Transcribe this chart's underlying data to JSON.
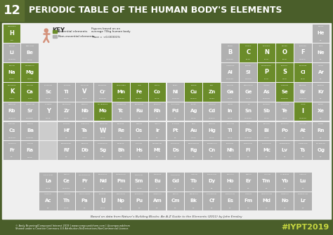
{
  "title_number": "12",
  "title_text": "PERIODIC TABLE OF THE HUMAN BODY'S ELEMENTS",
  "bg_outer": "#4a5e2a",
  "bg_inner": "#f0f0f0",
  "header_bg": "#4a5e2a",
  "number_bg": "#6b7d3a",
  "essential_color": "#6b8c2a",
  "non_essential_color": "#b0b0b0",
  "footer_bg": "#4a5e2a",
  "footer_text": "Based on data from Nature's Building Blocks: An A-Z Guide to the Elements (2011) by John Emsley",
  "hashtag": "#IYPT2019",
  "key_text": "KEY",
  "key_essential": "Essential elements",
  "key_non_essential": "Non-essential elements",
  "key_figures": "Figures based on an\naverage 70kg human body",
  "key_trace": "Trace = <0.00001%",
  "elements": [
    {
      "symbol": "H",
      "name": "HYDROGEN",
      "val": "10%",
      "row": 0,
      "col": 0,
      "type": "essential"
    },
    {
      "symbol": "He",
      "name": "HELIUM",
      "val": "0%",
      "row": 0,
      "col": 17,
      "type": "non_essential"
    },
    {
      "symbol": "Li",
      "name": "LITHIUM",
      "val": "0.00001%",
      "row": 1,
      "col": 0,
      "type": "non_essential"
    },
    {
      "symbol": "Be",
      "name": "BERYLLIUM",
      "val": "TRACE",
      "row": 1,
      "col": 1,
      "type": "non_essential"
    },
    {
      "symbol": "B",
      "name": "BORON",
      "val": "0.00003%",
      "row": 1,
      "col": 12,
      "type": "non_essential"
    },
    {
      "symbol": "C",
      "name": "CARBON",
      "val": "22.3%",
      "row": 1,
      "col": 13,
      "type": "essential"
    },
    {
      "symbol": "N",
      "name": "NITROGEN",
      "val": "2.17%",
      "row": 1,
      "col": 14,
      "type": "essential"
    },
    {
      "symbol": "O",
      "name": "OXYGEN",
      "val": "61.4%",
      "row": 1,
      "col": 15,
      "type": "essential"
    },
    {
      "symbol": "F",
      "name": "FLUORINE",
      "val": "0.0037%",
      "row": 1,
      "col": 16,
      "type": "non_essential"
    },
    {
      "symbol": "Ne",
      "name": "NEON",
      "val": "0%",
      "row": 1,
      "col": 17,
      "type": "non_essential"
    },
    {
      "symbol": "Na",
      "name": "SODIUM",
      "val": "0.053%",
      "row": 2,
      "col": 0,
      "type": "essential"
    },
    {
      "symbol": "Mg",
      "name": "MAGNESIUM",
      "val": "0.027%",
      "row": 2,
      "col": 1,
      "type": "essential"
    },
    {
      "symbol": "Al",
      "name": "ALUMINIUM",
      "val": "0.00009%",
      "row": 2,
      "col": 12,
      "type": "non_essential"
    },
    {
      "symbol": "Si",
      "name": "SILICON",
      "val": "0.0014%",
      "row": 2,
      "col": 13,
      "type": "non_essential"
    },
    {
      "symbol": "P",
      "name": "PHOSPHORUS",
      "val": "1.11%",
      "row": 2,
      "col": 14,
      "type": "essential"
    },
    {
      "symbol": "S",
      "name": "SULPHUR",
      "val": "0.20%",
      "row": 2,
      "col": 15,
      "type": "essential"
    },
    {
      "symbol": "Cl",
      "name": "CHLORINE",
      "val": "0.14%",
      "row": 2,
      "col": 16,
      "type": "essential"
    },
    {
      "symbol": "Ar",
      "name": "ARGON",
      "val": "0%",
      "row": 2,
      "col": 17,
      "type": "non_essential"
    },
    {
      "symbol": "K",
      "name": "POTASSIUM",
      "val": "0.047%",
      "row": 3,
      "col": 0,
      "type": "essential"
    },
    {
      "symbol": "Ca",
      "name": "CALCIUM",
      "val": "1.43%",
      "row": 3,
      "col": 1,
      "type": "essential"
    },
    {
      "symbol": "Sc",
      "name": "SCANDIUM",
      "val": "TRACE",
      "row": 3,
      "col": 2,
      "type": "non_essential"
    },
    {
      "symbol": "Ti",
      "name": "TITANIUM",
      "val": "TRACE",
      "row": 3,
      "col": 3,
      "type": "non_essential"
    },
    {
      "symbol": "V",
      "name": "VANADIUM",
      "val": "TRACE",
      "row": 3,
      "col": 4,
      "type": "non_essential"
    },
    {
      "symbol": "Cr",
      "name": "CHROMIUM",
      "val": "0.00003%",
      "row": 3,
      "col": 5,
      "type": "non_essential"
    },
    {
      "symbol": "Mn",
      "name": "MANGANESE",
      "val": "0.00002%",
      "row": 3,
      "col": 6,
      "type": "essential"
    },
    {
      "symbol": "Fe",
      "name": "IRON",
      "val": "0.0040%",
      "row": 3,
      "col": 7,
      "type": "essential"
    },
    {
      "symbol": "Co",
      "name": "COBALT",
      "val": "TRACE",
      "row": 3,
      "col": 8,
      "type": "essential"
    },
    {
      "symbol": "Ni",
      "name": "NICKEL",
      "val": "0.00002%",
      "row": 3,
      "col": 9,
      "type": "non_essential"
    },
    {
      "symbol": "Cu",
      "name": "COPPER",
      "val": "0.0001%",
      "row": 3,
      "col": 10,
      "type": "essential"
    },
    {
      "symbol": "Zn",
      "name": "ZINC",
      "val": "0.003%",
      "row": 3,
      "col": 11,
      "type": "essential"
    },
    {
      "symbol": "Ga",
      "name": "GALLIUM",
      "val": "TRACE",
      "row": 3,
      "col": 12,
      "type": "non_essential"
    },
    {
      "symbol": "Ge",
      "name": "GERMANIUM",
      "val": "TRACE",
      "row": 3,
      "col": 13,
      "type": "non_essential"
    },
    {
      "symbol": "As",
      "name": "ARSENIC",
      "val": "0.00001%",
      "row": 3,
      "col": 14,
      "type": "non_essential"
    },
    {
      "symbol": "Se",
      "name": "SELENIUM",
      "val": "0.00005%",
      "row": 3,
      "col": 15,
      "type": "essential"
    },
    {
      "symbol": "Br",
      "name": "BROMINE",
      "val": "0.00017%",
      "row": 3,
      "col": 16,
      "type": "non_essential"
    },
    {
      "symbol": "Kr",
      "name": "KRYPTON",
      "val": "0%",
      "row": 3,
      "col": 17,
      "type": "non_essential"
    },
    {
      "symbol": "Rb",
      "name": "RUBIDIUM",
      "val": "0.00017%",
      "row": 4,
      "col": 0,
      "type": "non_essential"
    },
    {
      "symbol": "Sr",
      "name": "STRONTIUM",
      "val": "0.00046%",
      "row": 4,
      "col": 1,
      "type": "non_essential"
    },
    {
      "symbol": "Y",
      "name": "YTTRIUM",
      "val": "TRACE",
      "row": 4,
      "col": 2,
      "type": "non_essential"
    },
    {
      "symbol": "Zr",
      "name": "ZIRCONIUM",
      "val": "TRACE",
      "row": 4,
      "col": 3,
      "type": "non_essential"
    },
    {
      "symbol": "Nb",
      "name": "NIOBIUM",
      "val": "TRACE",
      "row": 4,
      "col": 4,
      "type": "non_essential"
    },
    {
      "symbol": "Mo",
      "name": "MOLYBDENUM",
      "val": "TRACE",
      "row": 4,
      "col": 5,
      "type": "essential"
    },
    {
      "symbol": "Tc",
      "name": "TECHNETIUM",
      "val": "0%",
      "row": 4,
      "col": 6,
      "type": "non_essential"
    },
    {
      "symbol": "Ru",
      "name": "RUTHENIUM",
      "val": "0%",
      "row": 4,
      "col": 7,
      "type": "non_essential"
    },
    {
      "symbol": "Rh",
      "name": "RHODIUM",
      "val": "0%",
      "row": 4,
      "col": 8,
      "type": "non_essential"
    },
    {
      "symbol": "Pd",
      "name": "PALLADIUM",
      "val": "0%",
      "row": 4,
      "col": 9,
      "type": "non_essential"
    },
    {
      "symbol": "Ag",
      "name": "SILVER",
      "val": "TRACE",
      "row": 4,
      "col": 10,
      "type": "non_essential"
    },
    {
      "symbol": "Cd",
      "name": "CADMIUM",
      "val": "0.0001%",
      "row": 4,
      "col": 11,
      "type": "non_essential"
    },
    {
      "symbol": "In",
      "name": "INDIUM",
      "val": "TRACE",
      "row": 4,
      "col": 12,
      "type": "non_essential"
    },
    {
      "symbol": "Sn",
      "name": "TIN",
      "val": "0.00003%",
      "row": 4,
      "col": 13,
      "type": "non_essential"
    },
    {
      "symbol": "Sb",
      "name": "ANTIMONY",
      "val": "TRACE",
      "row": 4,
      "col": 14,
      "type": "non_essential"
    },
    {
      "symbol": "Te",
      "name": "TELLURIUM",
      "val": "TRACE",
      "row": 4,
      "col": 15,
      "type": "non_essential"
    },
    {
      "symbol": "I",
      "name": "IODINE",
      "val": "0.00007%",
      "row": 4,
      "col": 16,
      "type": "essential"
    },
    {
      "symbol": "Xe",
      "name": "XENON",
      "val": "0%",
      "row": 4,
      "col": 17,
      "type": "non_essential"
    },
    {
      "symbol": "Cs",
      "name": "CAESIUM",
      "val": "0.00001%",
      "row": 5,
      "col": 0,
      "type": "non_essential"
    },
    {
      "symbol": "Ba",
      "name": "BARIUM",
      "val": "0.00003%",
      "row": 5,
      "col": 1,
      "type": "non_essential"
    },
    {
      "symbol": "Hf",
      "name": "HAFNIUM",
      "val": "0%",
      "row": 5,
      "col": 3,
      "type": "non_essential"
    },
    {
      "symbol": "Ta",
      "name": "TANTALUM",
      "val": "TRACE",
      "row": 5,
      "col": 4,
      "type": "non_essential"
    },
    {
      "symbol": "W",
      "name": "TUNGSTEN",
      "val": "TRACE",
      "row": 5,
      "col": 5,
      "type": "non_essential"
    },
    {
      "symbol": "Re",
      "name": "RHENIUM",
      "val": "0%",
      "row": 5,
      "col": 6,
      "type": "non_essential"
    },
    {
      "symbol": "Os",
      "name": "OSMIUM",
      "val": "0%",
      "row": 5,
      "col": 7,
      "type": "non_essential"
    },
    {
      "symbol": "Ir",
      "name": "IRIDIUM",
      "val": "0%",
      "row": 5,
      "col": 8,
      "type": "non_essential"
    },
    {
      "symbol": "Pt",
      "name": "PLATINUM",
      "val": "0%",
      "row": 5,
      "col": 9,
      "type": "non_essential"
    },
    {
      "symbol": "Au",
      "name": "GOLD",
      "val": "TRACE",
      "row": 5,
      "col": 10,
      "type": "non_essential"
    },
    {
      "symbol": "Hg",
      "name": "MERCURY",
      "val": "TRACE",
      "row": 5,
      "col": 11,
      "type": "non_essential"
    },
    {
      "symbol": "Tl",
      "name": "THALLIUM",
      "val": "TRACE",
      "row": 5,
      "col": 12,
      "type": "non_essential"
    },
    {
      "symbol": "Pb",
      "name": "LEAD",
      "val": "0.00017%",
      "row": 5,
      "col": 13,
      "type": "non_essential"
    },
    {
      "symbol": "Bi",
      "name": "BISMUTH",
      "val": "TRACE",
      "row": 5,
      "col": 14,
      "type": "non_essential"
    },
    {
      "symbol": "Po",
      "name": "POLONIUM",
      "val": "0%",
      "row": 5,
      "col": 15,
      "type": "non_essential"
    },
    {
      "symbol": "At",
      "name": "ASTATINE",
      "val": "0%",
      "row": 5,
      "col": 16,
      "type": "non_essential"
    },
    {
      "symbol": "Rn",
      "name": "RADON",
      "val": "0%",
      "row": 5,
      "col": 17,
      "type": "non_essential"
    },
    {
      "symbol": "Fr",
      "name": "FRANCIUM",
      "val": "0%",
      "row": 6,
      "col": 0,
      "type": "non_essential"
    },
    {
      "symbol": "Ra",
      "name": "RADIUM",
      "val": "TRACE",
      "row": 6,
      "col": 1,
      "type": "non_essential"
    },
    {
      "symbol": "Rf",
      "name": "RUTHERFORD.",
      "val": "0%",
      "row": 6,
      "col": 3,
      "type": "non_essential"
    },
    {
      "symbol": "Db",
      "name": "DUBNIUM",
      "val": "0%",
      "row": 6,
      "col": 4,
      "type": "non_essential"
    },
    {
      "symbol": "Sg",
      "name": "SEABORGIUM",
      "val": "0%",
      "row": 6,
      "col": 5,
      "type": "non_essential"
    },
    {
      "symbol": "Bh",
      "name": "BOHRIUM",
      "val": "0%",
      "row": 6,
      "col": 6,
      "type": "non_essential"
    },
    {
      "symbol": "Hs",
      "name": "HASSIUM",
      "val": "0%",
      "row": 6,
      "col": 7,
      "type": "non_essential"
    },
    {
      "symbol": "Mt",
      "name": "MEITNERIUM",
      "val": "0%",
      "row": 6,
      "col": 8,
      "type": "non_essential"
    },
    {
      "symbol": "Ds",
      "name": "DARMSTADT.",
      "val": "0%",
      "row": 6,
      "col": 9,
      "type": "non_essential"
    },
    {
      "symbol": "Rg",
      "name": "ROENTGENIUM",
      "val": "0%",
      "row": 6,
      "col": 10,
      "type": "non_essential"
    },
    {
      "symbol": "Cn",
      "name": "COPERNICUM",
      "val": "0%",
      "row": 6,
      "col": 11,
      "type": "non_essential"
    },
    {
      "symbol": "Nh",
      "name": "NIHONIUM",
      "val": "0%",
      "row": 6,
      "col": 12,
      "type": "non_essential"
    },
    {
      "symbol": "Fl",
      "name": "FLEROVIUM",
      "val": "0%",
      "row": 6,
      "col": 13,
      "type": "non_essential"
    },
    {
      "symbol": "Mc",
      "name": "MOSCOVIUM",
      "val": "0%",
      "row": 6,
      "col": 14,
      "type": "non_essential"
    },
    {
      "symbol": "Lv",
      "name": "LIVERMORIUM",
      "val": "0%",
      "row": 6,
      "col": 15,
      "type": "non_essential"
    },
    {
      "symbol": "Ts",
      "name": "TENNESSINE",
      "val": "0%",
      "row": 6,
      "col": 16,
      "type": "non_essential"
    },
    {
      "symbol": "Og",
      "name": "OGANESSON",
      "val": "0%",
      "row": 6,
      "col": 17,
      "type": "non_essential"
    },
    {
      "symbol": "La",
      "name": "LANTHANUM",
      "val": "TRACE",
      "row": 8,
      "col": 2,
      "type": "non_essential"
    },
    {
      "symbol": "Ce",
      "name": "CERIUM",
      "val": "0.00006%",
      "row": 8,
      "col": 3,
      "type": "non_essential"
    },
    {
      "symbol": "Pr",
      "name": "PRASEODYMIUM",
      "val": "0%",
      "row": 8,
      "col": 4,
      "type": "non_essential"
    },
    {
      "symbol": "Nd",
      "name": "NEODYMIUM",
      "val": "0%",
      "row": 8,
      "col": 5,
      "type": "non_essential"
    },
    {
      "symbol": "Pm",
      "name": "PROMETHIUM",
      "val": "0%",
      "row": 8,
      "col": 6,
      "type": "non_essential"
    },
    {
      "symbol": "Sm",
      "name": "SAMARIUM",
      "val": "TRACE",
      "row": 8,
      "col": 7,
      "type": "non_essential"
    },
    {
      "symbol": "Eu",
      "name": "EUROPIUM",
      "val": "0%",
      "row": 8,
      "col": 8,
      "type": "non_essential"
    },
    {
      "symbol": "Gd",
      "name": "GADOLINIUM",
      "val": "0%",
      "row": 8,
      "col": 9,
      "type": "non_essential"
    },
    {
      "symbol": "Tb",
      "name": "TERBIUM",
      "val": "0%",
      "row": 8,
      "col": 10,
      "type": "non_essential"
    },
    {
      "symbol": "Dy",
      "name": "DYSPROSIUM",
      "val": "0%",
      "row": 8,
      "col": 11,
      "type": "non_essential"
    },
    {
      "symbol": "Ho",
      "name": "HOLMIUM",
      "val": "0%",
      "row": 8,
      "col": 12,
      "type": "non_essential"
    },
    {
      "symbol": "Er",
      "name": "ERBIUM",
      "val": "0%",
      "row": 8,
      "col": 13,
      "type": "non_essential"
    },
    {
      "symbol": "Tm",
      "name": "THULIUM",
      "val": "0%",
      "row": 8,
      "col": 14,
      "type": "non_essential"
    },
    {
      "symbol": "Yb",
      "name": "YTTERBIUM",
      "val": "0%",
      "row": 8,
      "col": 15,
      "type": "non_essential"
    },
    {
      "symbol": "Lu",
      "name": "LUTETIUM",
      "val": "0%",
      "row": 8,
      "col": 16,
      "type": "non_essential"
    },
    {
      "symbol": "Ac",
      "name": "ACTINIUM",
      "val": "0%",
      "row": 9,
      "col": 2,
      "type": "non_essential"
    },
    {
      "symbol": "Th",
      "name": "THORIUM",
      "val": "TRACE",
      "row": 9,
      "col": 3,
      "type": "non_essential"
    },
    {
      "symbol": "Pa",
      "name": "PROTACTINIUM",
      "val": "0%",
      "row": 9,
      "col": 4,
      "type": "non_essential"
    },
    {
      "symbol": "U",
      "name": "URANIUM",
      "val": "TRACE",
      "row": 9,
      "col": 5,
      "type": "non_essential"
    },
    {
      "symbol": "Np",
      "name": "NEPTUNIUM",
      "val": "0%",
      "row": 9,
      "col": 6,
      "type": "non_essential"
    },
    {
      "symbol": "Pu",
      "name": "PLUTONIUM",
      "val": "0%",
      "row": 9,
      "col": 7,
      "type": "non_essential"
    },
    {
      "symbol": "Am",
      "name": "AMERICIUM",
      "val": "0%",
      "row": 9,
      "col": 8,
      "type": "non_essential"
    },
    {
      "symbol": "Cm",
      "name": "CURIUM",
      "val": "0%",
      "row": 9,
      "col": 9,
      "type": "non_essential"
    },
    {
      "symbol": "Bk",
      "name": "BERKELIUM",
      "val": "0%",
      "row": 9,
      "col": 10,
      "type": "non_essential"
    },
    {
      "symbol": "Cf",
      "name": "CALIFORNIUM",
      "val": "0%",
      "row": 9,
      "col": 11,
      "type": "non_essential"
    },
    {
      "symbol": "Es",
      "name": "EINSTEINIUM",
      "val": "0%",
      "row": 9,
      "col": 12,
      "type": "non_essential"
    },
    {
      "symbol": "Fm",
      "name": "FERMIUM",
      "val": "0%",
      "row": 9,
      "col": 13,
      "type": "non_essential"
    },
    {
      "symbol": "Md",
      "name": "MENDELEVIUM",
      "val": "0%",
      "row": 9,
      "col": 14,
      "type": "non_essential"
    },
    {
      "symbol": "No",
      "name": "NOBELIUM",
      "val": "0%",
      "row": 9,
      "col": 15,
      "type": "non_essential"
    },
    {
      "symbol": "Lr",
      "name": "LAWRENCIUM",
      "val": "0%",
      "row": 9,
      "col": 16,
      "type": "non_essential"
    }
  ]
}
